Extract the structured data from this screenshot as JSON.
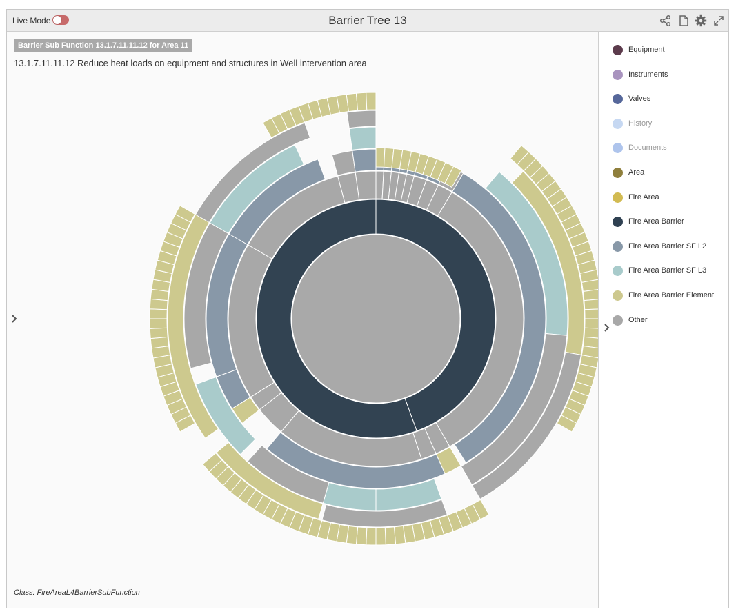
{
  "header": {
    "live_mode_label": "Live Mode",
    "live_mode_on": true,
    "title": "Barrier Tree 13",
    "icons": [
      "share-icon",
      "document-icon",
      "gear-icon",
      "expand-icon"
    ]
  },
  "main": {
    "badge": "Barrier Sub Function 13.1.7.11.11.12 for Area 11",
    "description": "13.1.7.11.11.12 Reduce heat loads on equipment and structures in Well intervention area",
    "class_line": "Class: FireAreaL4BarrierSubFunction"
  },
  "legend": {
    "items": [
      {
        "label": "Equipment",
        "color": "#5c3b4c",
        "muted": false
      },
      {
        "label": "Instruments",
        "color": "#a994bf",
        "muted": false
      },
      {
        "label": "Valves",
        "color": "#56679a",
        "muted": false
      },
      {
        "label": "History",
        "color": "#c6d8f2",
        "muted": true
      },
      {
        "label": "Documents",
        "color": "#aec4ec",
        "muted": true
      },
      {
        "label": "Area",
        "color": "#8f7f3c",
        "muted": false
      },
      {
        "label": "Fire Area",
        "color": "#d2bb52",
        "muted": false
      },
      {
        "label": "Fire Area Barrier",
        "color": "#2f4152",
        "muted": false
      },
      {
        "label": "Fire Area Barrier SF L2",
        "color": "#8898a8",
        "muted": false
      },
      {
        "label": "Fire Area Barrier SF L3",
        "color": "#a8cbcb",
        "muted": false
      },
      {
        "label": "Fire Area Barrier Element",
        "color": "#cdc88e",
        "muted": false
      },
      {
        "label": "Other",
        "color": "#a8a8a8",
        "muted": false
      }
    ]
  },
  "colors": {
    "center": "#a9a9a9",
    "barrier": "#324352",
    "sf_l2": "#8898a8",
    "sf_l3": "#a9cbcb",
    "element": "#cdc98e",
    "other": "#a8a8a8"
  }
}
